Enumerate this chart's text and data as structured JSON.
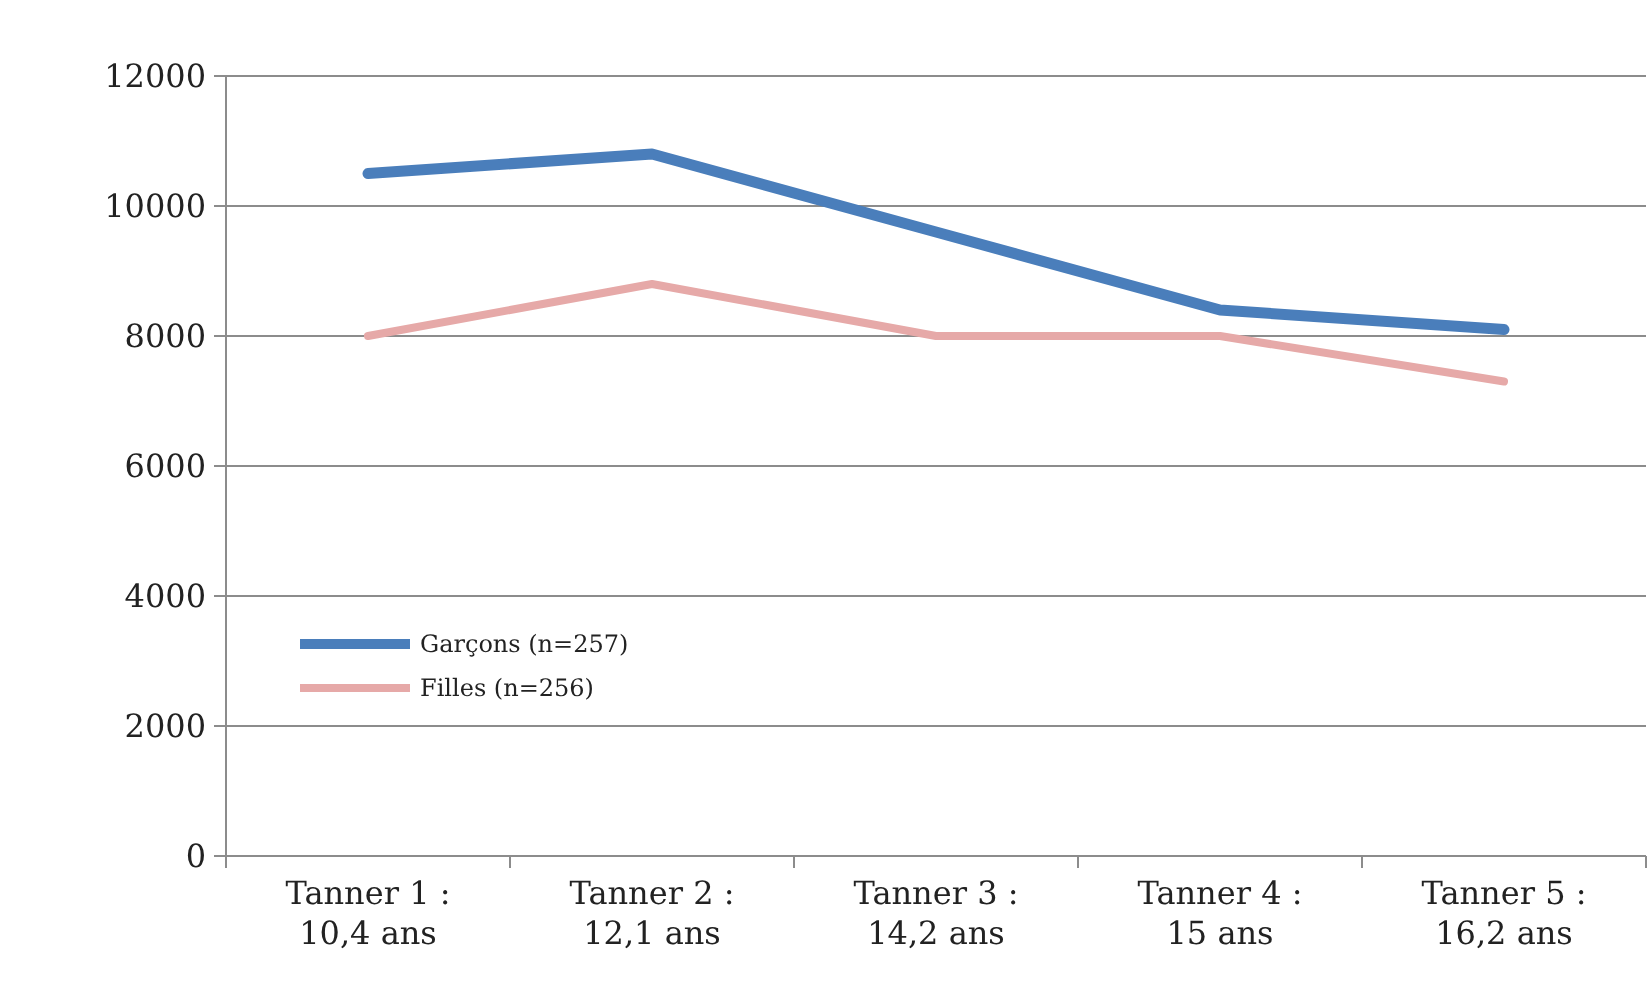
{
  "chart_data": {
    "type": "line",
    "categories": [
      "Tanner 1 :\n10,4 ans",
      "Tanner 2 :\n12,1 ans",
      "Tanner 3 :\n14,2 ans",
      "Tanner 4 :\n15 ans",
      "Tanner 5 :\n16,2 ans"
    ],
    "series": [
      {
        "name": "Garçons (n=257)",
        "color": "#4a7ebb",
        "values": [
          10500,
          10800,
          9600,
          8400,
          8100
        ]
      },
      {
        "name": "Filles (n=256)",
        "color": "#e6a9a8",
        "values": [
          8000,
          8800,
          8000,
          8000,
          7300
        ]
      }
    ],
    "ylim": [
      0,
      12000
    ],
    "yticks": [
      0,
      2000,
      4000,
      6000,
      8000,
      10000,
      12000
    ],
    "grid": "y",
    "legend": "bottom left",
    "marker": "none",
    "line_style": "solid"
  }
}
